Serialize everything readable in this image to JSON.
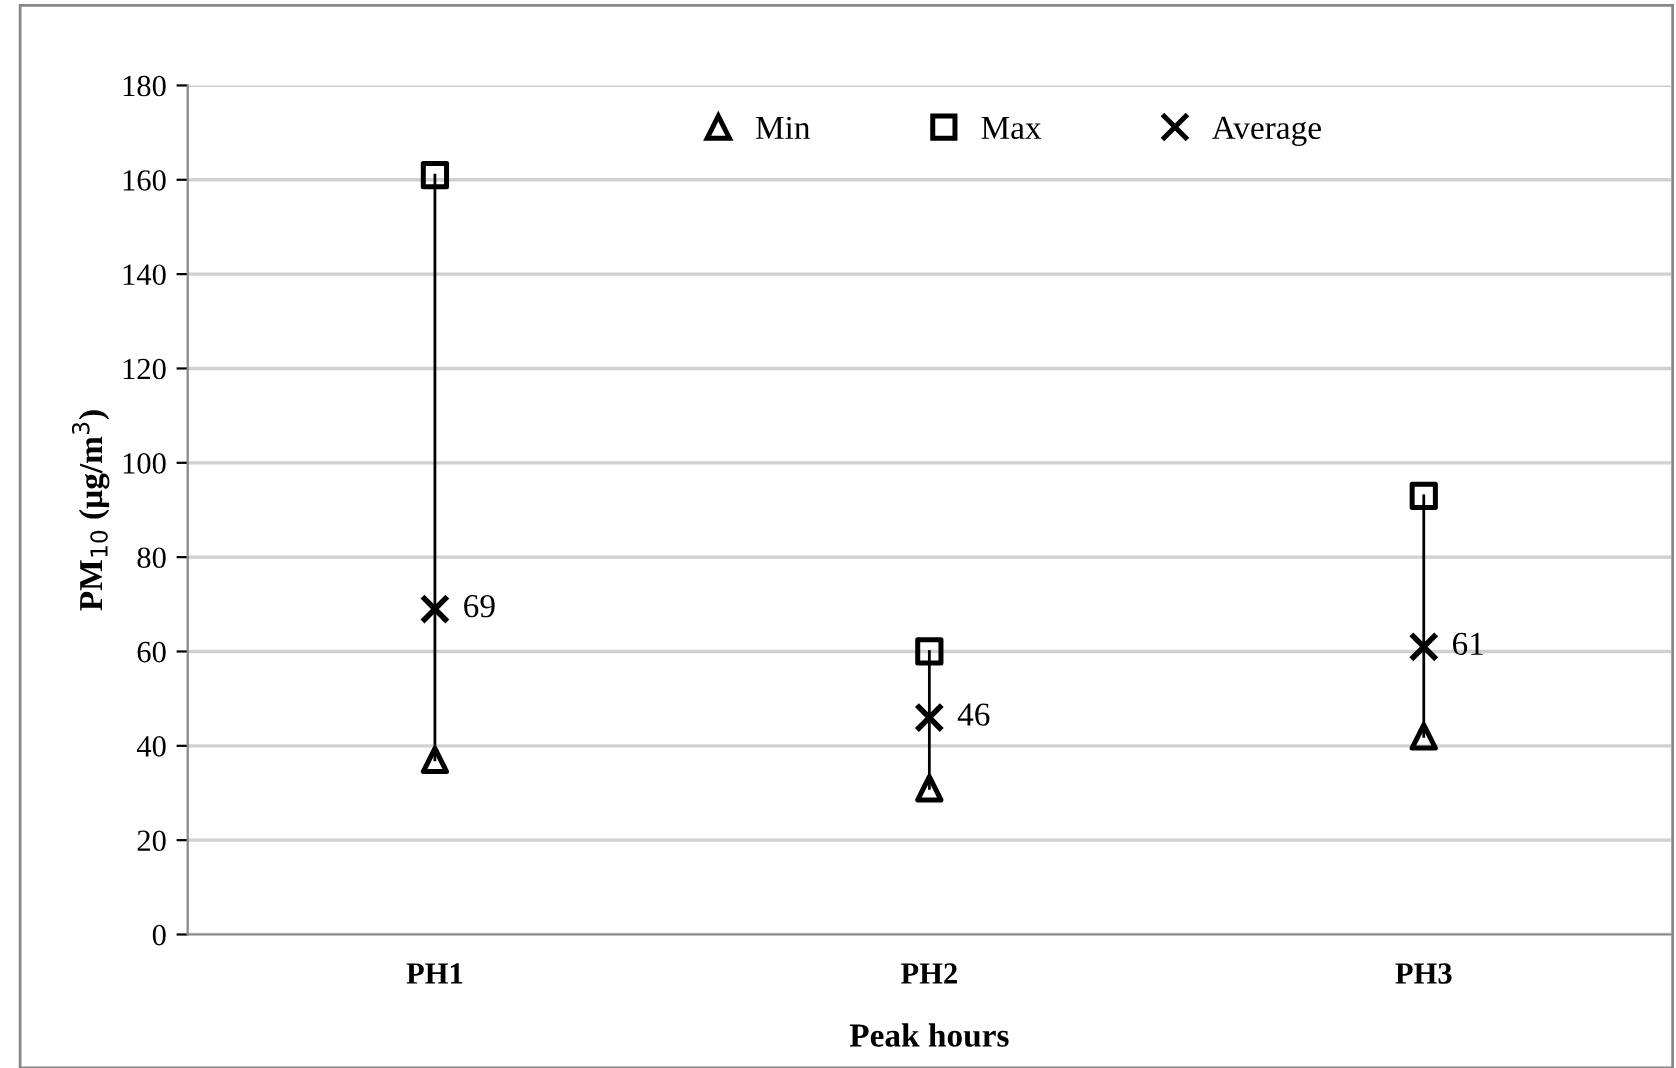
{
  "chart_data": {
    "type": "scatter",
    "xlabel": "Peak hours",
    "ylabel": "PM$_{10}$ (µg/m$^{3}$)",
    "categories": [
      "PH1",
      "PH2",
      "PH3"
    ],
    "series": [
      {
        "name": "Min",
        "color": "#000000",
        "marker": "triangle",
        "values": [
          37,
          31,
          42
        ]
      },
      {
        "name": "Max",
        "color": "#000000",
        "marker": "square",
        "values": [
          161,
          60,
          93
        ]
      },
      {
        "name": "Average",
        "color": "#000000",
        "marker": "cross",
        "values": [
          69,
          46,
          61
        ],
        "value_labels": [
          "69",
          "46",
          "61"
        ]
      }
    ],
    "ylim": [
      0,
      180
    ],
    "yticks": [
      0,
      20,
      40,
      60,
      80,
      100,
      120,
      140,
      160,
      180
    ],
    "grid": "y",
    "legend": "top"
  }
}
